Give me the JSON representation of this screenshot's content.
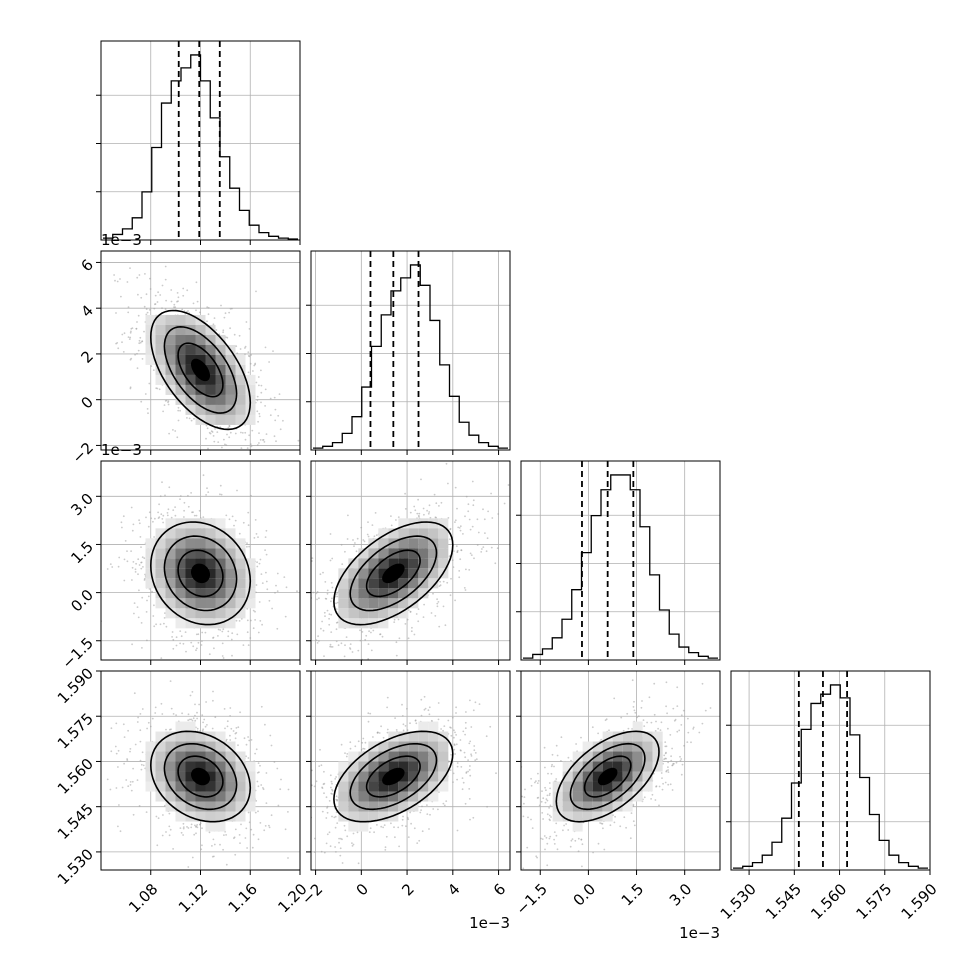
{
  "chart_data": {
    "type": "corner",
    "title": "",
    "n_params": 4,
    "grid": true,
    "parameters": [
      {
        "range": [
          1.04,
          1.2
        ],
        "ticks": [
          1.08,
          1.12,
          1.16,
          1.2
        ],
        "tick_labels": [
          "1.08",
          "1.12",
          "1.16",
          "1.20"
        ],
        "offset_label": "",
        "quantiles": [
          1.1025,
          1.119,
          1.1355
        ]
      },
      {
        "range": [
          -2.2,
          6.5
        ],
        "ticks": [
          -2,
          0,
          2,
          4,
          6
        ],
        "tick_labels": [
          "−2",
          "0",
          "2",
          "4",
          "6"
        ],
        "offset_label": "1e−3",
        "quantiles": [
          0.4,
          1.4,
          2.5
        ]
      },
      {
        "range": [
          -2.1,
          4.1
        ],
        "ticks": [
          -1.5,
          0.0,
          1.5,
          3.0
        ],
        "tick_labels": [
          "−1.5",
          "0.0",
          "1.5",
          "3.0"
        ],
        "offset_label": "1e−3",
        "quantiles": [
          -0.2,
          0.6,
          1.4
        ]
      },
      {
        "range": [
          1.524,
          1.59
        ],
        "ticks": [
          1.53,
          1.545,
          1.56,
          1.575,
          1.59
        ],
        "tick_labels": [
          "1.530",
          "1.545",
          "1.560",
          "1.575",
          "1.590"
        ],
        "offset_label": "",
        "quantiles": [
          1.5465,
          1.5545,
          1.5625
        ]
      }
    ],
    "histograms": [
      [
        0.01,
        0.03,
        0.06,
        0.12,
        0.26,
        0.5,
        0.74,
        0.86,
        0.93,
        1.0,
        0.86,
        0.66,
        0.45,
        0.28,
        0.16,
        0.08,
        0.04,
        0.02,
        0.01,
        0.005
      ],
      [
        0.01,
        0.02,
        0.04,
        0.09,
        0.18,
        0.34,
        0.56,
        0.73,
        0.86,
        0.93,
        1.0,
        0.89,
        0.7,
        0.46,
        0.29,
        0.15,
        0.08,
        0.04,
        0.02,
        0.01
      ],
      [
        0.01,
        0.03,
        0.06,
        0.12,
        0.22,
        0.38,
        0.58,
        0.78,
        0.92,
        1.0,
        1.0,
        0.92,
        0.72,
        0.46,
        0.27,
        0.14,
        0.07,
        0.04,
        0.02,
        0.01
      ],
      [
        0.01,
        0.02,
        0.04,
        0.08,
        0.15,
        0.28,
        0.47,
        0.76,
        0.9,
        0.95,
        1.0,
        0.93,
        0.73,
        0.5,
        0.3,
        0.16,
        0.08,
        0.04,
        0.02,
        0.01
      ]
    ],
    "pairs": [
      {
        "row": 1,
        "col": 0,
        "mean": [
          1.12,
          1.3
        ],
        "sd": [
          0.02,
          1.3
        ],
        "rho": -0.55
      },
      {
        "row": 2,
        "col": 0,
        "mean": [
          1.12,
          0.6
        ],
        "sd": [
          0.02,
          0.8
        ],
        "rho": -0.15
      },
      {
        "row": 2,
        "col": 1,
        "mean": [
          1.4,
          0.6
        ],
        "sd": [
          1.3,
          0.8
        ],
        "rho": 0.55
      },
      {
        "row": 3,
        "col": 0,
        "mean": [
          1.12,
          1.555
        ],
        "sd": [
          0.02,
          0.0075
        ],
        "rho": -0.25
      },
      {
        "row": 3,
        "col": 1,
        "mean": [
          1.4,
          1.555
        ],
        "sd": [
          1.3,
          0.0075
        ],
        "rho": 0.5
      },
      {
        "row": 3,
        "col": 2,
        "mean": [
          0.6,
          1.555
        ],
        "sd": [
          0.8,
          0.0075
        ],
        "rho": 0.55
      }
    ],
    "colors": {
      "line": "#000000",
      "grid": "#b0b0b0",
      "points": "#a0a0a0",
      "density_dark": "#000000"
    }
  }
}
